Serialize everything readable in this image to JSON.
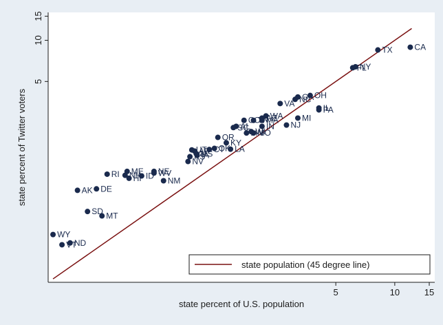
{
  "chart_data": {
    "type": "scatter",
    "title": "",
    "xlabel": "state percent of U.S. population",
    "ylabel": "state percent of Twitter voters",
    "x_scale": "log",
    "y_scale": "log",
    "xlim": [
      0.17,
      16
    ],
    "ylim": [
      0.17,
      16
    ],
    "x_ticks": [
      5,
      10,
      15
    ],
    "y_ticks": [
      5,
      10,
      15
    ],
    "grid": false,
    "legend": {
      "position": "bottom-right",
      "entries": [
        "state population (45 degree line)"
      ]
    },
    "colors": {
      "points": "#1a2a4d",
      "line": "#7a1010",
      "labels": "#1a2a4d"
    },
    "points": [
      {
        "label": "CA",
        "x": 12.0,
        "y": 8.9
      },
      {
        "label": "TX",
        "x": 8.2,
        "y": 8.5
      },
      {
        "label": "NY",
        "x": 6.3,
        "y": 6.4
      },
      {
        "label": "FL",
        "x": 6.1,
        "y": 6.3
      },
      {
        "label": "OH",
        "x": 3.7,
        "y": 3.95
      },
      {
        "label": "GA",
        "x": 3.2,
        "y": 3.85
      },
      {
        "label": "NC",
        "x": 3.1,
        "y": 3.7
      },
      {
        "label": "IL",
        "x": 4.1,
        "y": 3.2
      },
      {
        "label": "PA",
        "x": 4.1,
        "y": 3.1
      },
      {
        "label": "VA",
        "x": 2.6,
        "y": 3.45
      },
      {
        "label": "MI",
        "x": 3.2,
        "y": 2.7
      },
      {
        "label": "NJ",
        "x": 2.8,
        "y": 2.4
      },
      {
        "label": "WA",
        "x": 2.2,
        "y": 2.8
      },
      {
        "label": "MA",
        "x": 2.1,
        "y": 2.6
      },
      {
        "label": "AZ",
        "x": 2.1,
        "y": 2.7
      },
      {
        "label": "CO",
        "x": 1.7,
        "y": 2.6
      },
      {
        "label": "TN",
        "x": 1.9,
        "y": 2.6
      },
      {
        "label": "IN",
        "x": 2.1,
        "y": 2.35
      },
      {
        "label": "AL",
        "x": 1.55,
        "y": 2.35
      },
      {
        "label": "SC",
        "x": 1.5,
        "y": 2.3
      },
      {
        "label": "WI",
        "x": 1.85,
        "y": 2.15
      },
      {
        "label": "MN",
        "x": 1.75,
        "y": 2.1
      },
      {
        "label": "MO",
        "x": 1.9,
        "y": 2.1
      },
      {
        "label": "OR",
        "x": 1.25,
        "y": 1.95
      },
      {
        "label": "KY",
        "x": 1.38,
        "y": 1.78
      },
      {
        "label": "LA",
        "x": 1.45,
        "y": 1.6
      },
      {
        "label": "OK",
        "x": 1.2,
        "y": 1.62
      },
      {
        "label": "CT",
        "x": 1.13,
        "y": 1.59
      },
      {
        "label": "UT",
        "x": 0.92,
        "y": 1.58
      },
      {
        "label": "AR",
        "x": 0.95,
        "y": 1.55
      },
      {
        "label": "MS",
        "x": 0.97,
        "y": 1.48
      },
      {
        "label": "IA",
        "x": 0.98,
        "y": 1.44
      },
      {
        "label": "KS",
        "x": 0.9,
        "y": 1.41
      },
      {
        "label": "NV",
        "x": 0.88,
        "y": 1.3
      },
      {
        "label": "NE",
        "x": 0.59,
        "y": 1.1
      },
      {
        "label": "WV",
        "x": 0.59,
        "y": 1.07
      },
      {
        "label": "ME",
        "x": 0.43,
        "y": 1.1
      },
      {
        "label": "RI",
        "x": 0.34,
        "y": 1.05
      },
      {
        "label": "NH",
        "x": 0.42,
        "y": 1.03
      },
      {
        "label": "ID",
        "x": 0.51,
        "y": 1.02
      },
      {
        "label": "HI",
        "x": 0.44,
        "y": 0.98
      },
      {
        "label": "NM",
        "x": 0.66,
        "y": 0.94
      },
      {
        "label": "DE",
        "x": 0.3,
        "y": 0.82
      },
      {
        "label": "AK",
        "x": 0.24,
        "y": 0.8
      },
      {
        "label": "SD",
        "x": 0.27,
        "y": 0.56
      },
      {
        "label": "MT",
        "x": 0.32,
        "y": 0.52
      },
      {
        "label": "WY",
        "x": 0.18,
        "y": 0.38
      },
      {
        "label": "ND",
        "x": 0.22,
        "y": 0.33
      },
      {
        "label": "VT",
        "x": 0.2,
        "y": 0.32
      }
    ]
  }
}
